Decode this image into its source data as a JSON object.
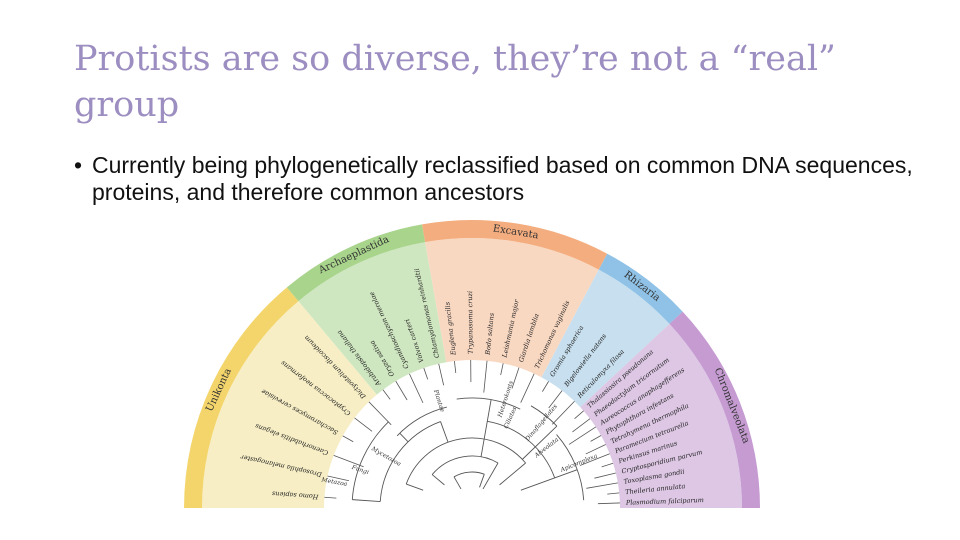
{
  "slide": {
    "title": "Protists are so diverse, they’re not a “real” group",
    "bullet_marker": "•",
    "bullet": "Currently being phylogenetically reclassified based on common DNA sequences, proteins, and therefore common ancestors"
  },
  "diagram": {
    "groups": [
      {
        "name": "Unikonta",
        "color": "#f3d56b",
        "fill": "#f7eec5",
        "species": [
          "Homo sapiens",
          "Drosophila melanogaster",
          "Caenorhabditis elegans",
          "Saccharomyces cerevisiae",
          "Cryptococcus neoformans",
          "Dictyostelium discoideum"
        ]
      },
      {
        "name": "Archaeplastida",
        "color": "#a8d48c",
        "fill": "#cfe7c0",
        "species": [
          "Arabidopsis thaliana",
          "Oryza sativa",
          "Cyanidioschyzon merolae",
          "Volvox carteri",
          "Chlamydomonas reinhardtii"
        ]
      },
      {
        "name": "Excavata",
        "color": "#f4ad7f",
        "fill": "#f9d8c2",
        "species": [
          "Euglena gracilis",
          "Trypanosoma cruzi",
          "Bodo saltans",
          "Leishmania major",
          "Giardia lamblia",
          "Trichomonas vaginalis"
        ]
      },
      {
        "name": "Rhizaria",
        "color": "#8fc2e6",
        "fill": "#c7dfee",
        "species": [
          "Gromia sphaerica",
          "Bigelowiella natans",
          "Reticulomyxa filosa"
        ]
      },
      {
        "name": "Chromalveolata",
        "color": "#c59bd2",
        "fill": "#ddc7e4",
        "species": [
          "Thalassiosira pseudonana",
          "Phaeodactylum tricornutum",
          "Aureococcus anophagefferens",
          "Phytophthora infestans",
          "Tetrahymena thermophila",
          "Paramecium tetraurelia",
          "Perkinsus marinus",
          "Cryptosporidium parvum",
          "Toxoplasma gondii",
          "Theileria annulata",
          "Plasmodium falciparum"
        ]
      }
    ],
    "clade_labels": [
      "Fungi",
      "Metazoa",
      "Mycetozoa",
      "Plantae",
      "Heterokonts",
      "Ciliates",
      "Dinoflagellates",
      "Apicomplexa",
      "Alveolata"
    ]
  }
}
